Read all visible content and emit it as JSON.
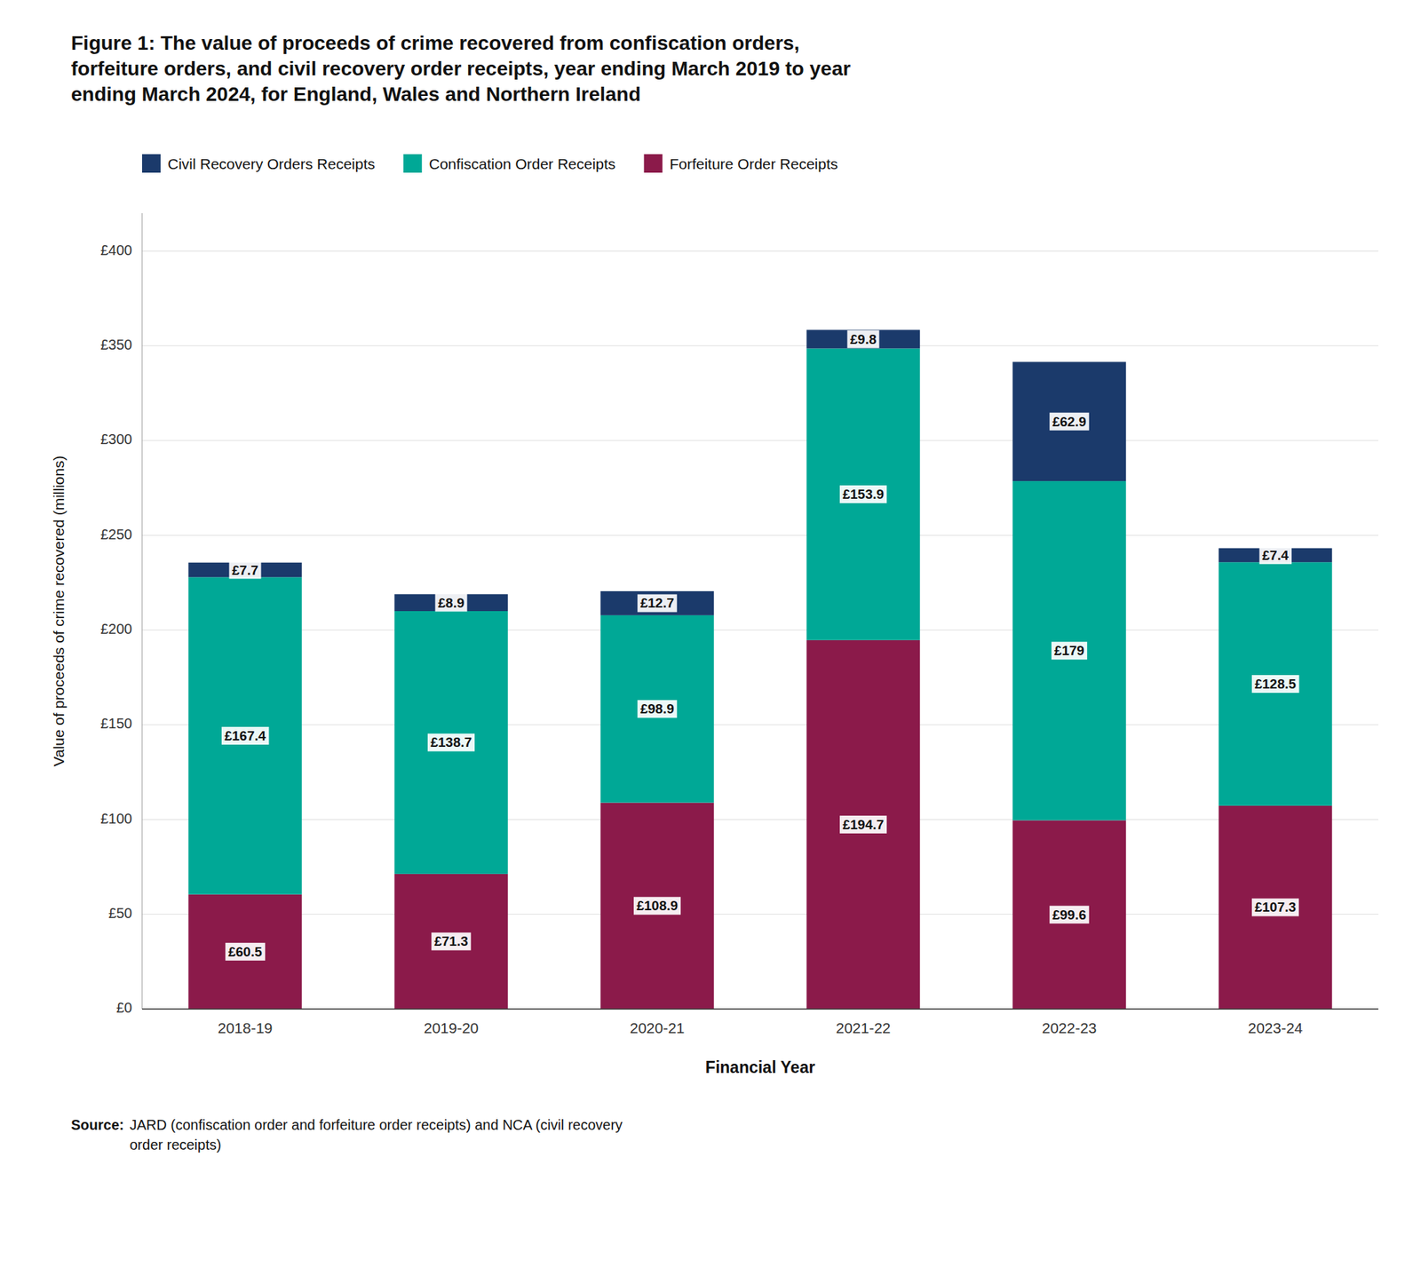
{
  "chart_data": {
    "type": "bar",
    "stacked": true,
    "title": "Figure 1: The value of proceeds of crime recovered from confiscation orders,\nforfeiture orders, and civil recovery order receipts, year ending March 2019 to year\nending March 2024, for England, Wales and Northern Ireland",
    "x_label": "Financial Year",
    "y_label": "Value of proceeds of crime recovered (millions)",
    "annotations": [
      "Source:",
      "JARD (confiscation order and forfeiture order receipts) and NCA (civil recovery\norder receipts)"
    ],
    "categories": [
      "2018-19",
      "2019-20",
      "2020-21",
      "2021-22",
      "2022-23",
      "2023-24"
    ],
    "series": [
      {
        "name": "Forfeiture Order Receipts",
        "color": "#8B1A4A",
        "values": [
          60.5,
          71.3,
          108.9,
          194.7,
          99.6,
          107.3
        ],
        "value_labels": [
          "£60.5",
          "£71.3",
          "£108.9",
          "£194.7",
          "£99.6",
          "£107.3"
        ]
      },
      {
        "name": "Confiscation Order Receipts",
        "color": "#00A896",
        "values": [
          167.4,
          138.7,
          98.9,
          153.9,
          179.0,
          128.5
        ],
        "value_labels": [
          "£167.4",
          "£138.7",
          "£98.9",
          "£153.9",
          "£179",
          "£128.5"
        ]
      },
      {
        "name": "Civil Recovery Orders Receipts",
        "color": "#1B3A6B",
        "values": [
          7.7,
          8.9,
          12.7,
          9.8,
          62.9,
          7.4
        ],
        "value_labels": [
          "£7.7",
          "£8.9",
          "£12.7",
          "£9.8",
          "£62.9",
          "£7.4"
        ]
      }
    ],
    "ylim": [
      0,
      420
    ],
    "yticks": [
      {
        "value": 0,
        "label": "£0"
      },
      {
        "value": 50,
        "label": "£50"
      },
      {
        "value": 100,
        "label": "£100"
      },
      {
        "value": 150,
        "label": "£150"
      },
      {
        "value": 200,
        "label": "£200"
      },
      {
        "value": 250,
        "label": "£250"
      },
      {
        "value": 300,
        "label": "£300"
      },
      {
        "value": 350,
        "label": "£350"
      },
      {
        "value": 400,
        "label": "£400"
      }
    ],
    "grid": true,
    "legend": "upper left",
    "data_labels": true
  }
}
